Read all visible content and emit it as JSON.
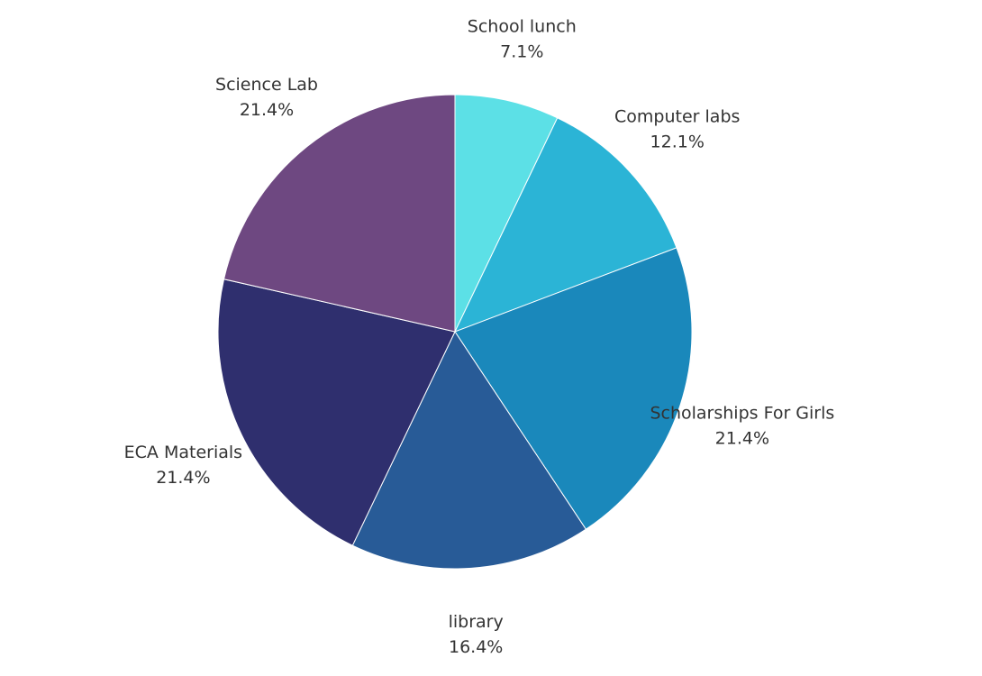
{
  "chart_data": {
    "type": "pie",
    "title": "",
    "start_angle_deg": 0,
    "direction": "clockwise",
    "legend": "none",
    "slices": [
      {
        "label": "School lunch",
        "value": 7.1,
        "display": "7.1%",
        "color": "#5ce0e6"
      },
      {
        "label": "Computer labs",
        "value": 12.1,
        "display": "12.1%",
        "color": "#2bb4d6"
      },
      {
        "label": "Scholarships For Girls",
        "value": 21.4,
        "display": "21.4%",
        "color": "#1a88bb"
      },
      {
        "label": "library",
        "value": 16.4,
        "display": "16.4%",
        "color": "#285b97"
      },
      {
        "label": "ECA Materials",
        "value": 21.4,
        "display": "21.4%",
        "color": "#2f2f6e"
      },
      {
        "label": "Science Lab",
        "value": 21.4,
        "display": "21.4%",
        "color": "#6e4881"
      }
    ]
  }
}
